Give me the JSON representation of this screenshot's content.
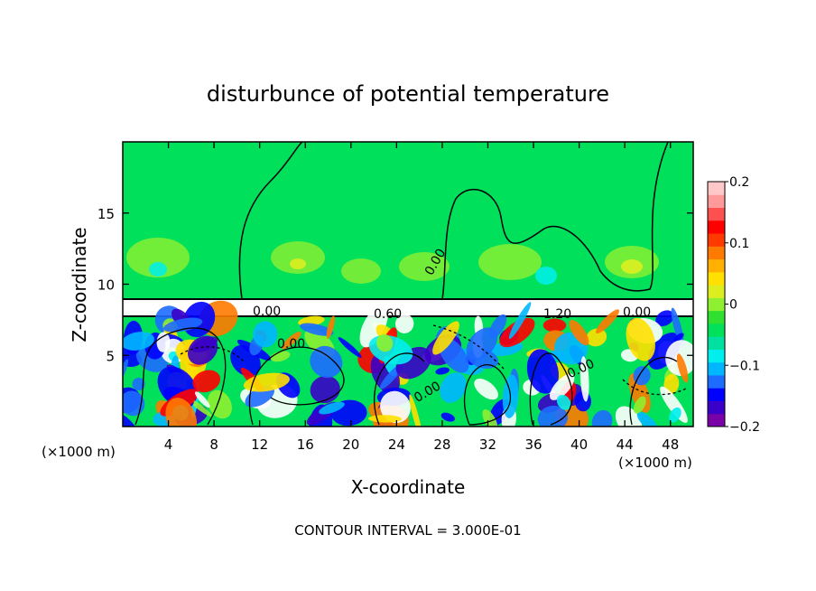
{
  "chart_data": {
    "type": "heatmap",
    "title": "disturbunce of potential temperature",
    "xlabel": "X-coordinate",
    "ylabel": "Z-coordinate",
    "x_unit_left": "(×1000 m)",
    "x_unit_right": "(×1000 m)",
    "xlim": [
      0,
      50
    ],
    "ylim": [
      0,
      20
    ],
    "x_ticks": [
      "4",
      "8",
      "12",
      "16",
      "20",
      "24",
      "28",
      "32",
      "36",
      "40",
      "44",
      "48"
    ],
    "y_ticks": [
      "5",
      "10",
      "15"
    ],
    "colorbar": {
      "range": [
        -0.2,
        0.2
      ],
      "tick_labels": [
        "0.2",
        "0.1",
        "0",
        "−0.1",
        "−0.2"
      ],
      "colors": [
        "#7a00a8",
        "#3a00c8",
        "#0000ff",
        "#1e6bff",
        "#00b7ff",
        "#00eeee",
        "#00e0a0",
        "#00e05a",
        "#30e030",
        "#8ef030",
        "#dcee20",
        "#ffe000",
        "#ffb000",
        "#ff7a00",
        "#ff3a00",
        "#ff0000",
        "#ff5050",
        "#ff9a9a",
        "#ffc8c8"
      ]
    },
    "contour_labels": [
      "0.00",
      "0.00",
      "0.00",
      "0.60",
      "1.20",
      "0.00",
      "0.00",
      "0.00"
    ],
    "contour_interval_text": "CONTOUR INTERVAL = 3.000E-01"
  }
}
